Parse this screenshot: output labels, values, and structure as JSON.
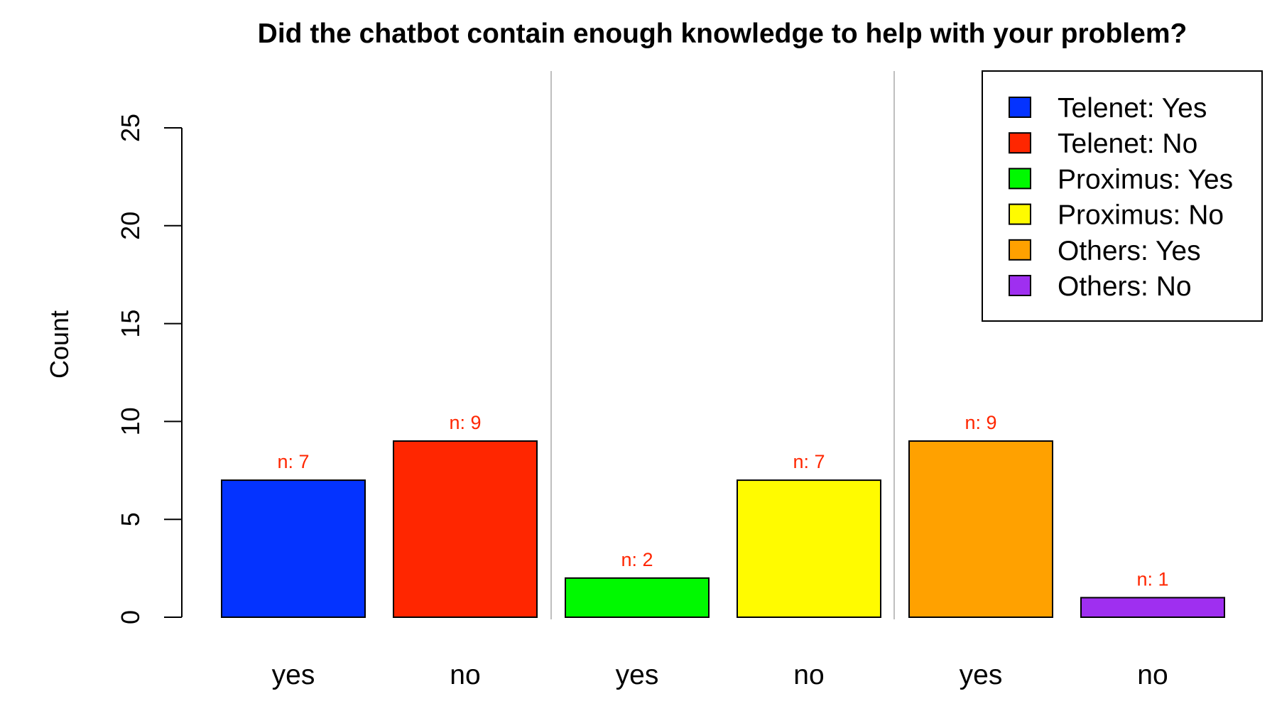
{
  "chart_data": {
    "type": "bar",
    "title": "Did the chatbot contain enough knowledge to help with your problem?",
    "xlabel": "",
    "ylabel": "Count",
    "ylim": [
      0,
      25
    ],
    "yticks": [
      0,
      5,
      10,
      15,
      20,
      25
    ],
    "categories": [
      "yes",
      "no",
      "yes",
      "no",
      "yes",
      "no"
    ],
    "values": [
      7,
      9,
      2,
      7,
      9,
      1
    ],
    "value_labels": [
      "n: 7",
      "n: 9",
      "n: 2",
      "n: 7",
      "n: 9",
      "n: 1"
    ],
    "bar_colors": [
      "#0433ff",
      "#ff2600",
      "#00f900",
      "#fffb00",
      "#ffa100",
      "#9f2ff0"
    ],
    "value_label_color": "#ff2600",
    "groups": [
      "Telenet",
      "Telenet",
      "Proximus",
      "Proximus",
      "Others",
      "Others"
    ],
    "legend_placement": "top-right",
    "legend": [
      {
        "label": "Telenet: Yes",
        "color": "#0433ff"
      },
      {
        "label": "Telenet: No",
        "color": "#ff2600"
      },
      {
        "label": "Proximus: Yes",
        "color": "#00f900"
      },
      {
        "label": "Proximus: No",
        "color": "#fffb00"
      },
      {
        "label": "Others: Yes",
        "color": "#ffa100"
      },
      {
        "label": "Others: No",
        "color": "#9f2ff0"
      }
    ],
    "grid": false
  }
}
